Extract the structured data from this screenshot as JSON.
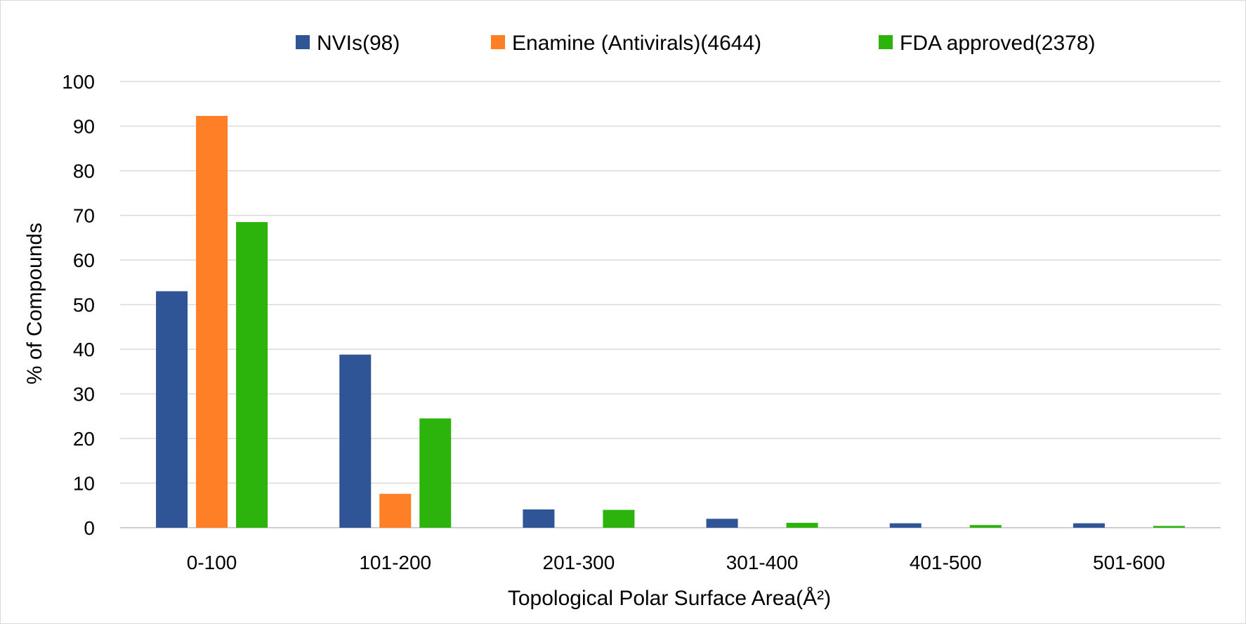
{
  "chart_data": {
    "type": "bar",
    "title": "",
    "xlabel": "Topological Polar Surface Area(Å²)",
    "ylabel": "% of Compounds",
    "ylim": [
      0,
      100
    ],
    "yticks": [
      "0",
      "10",
      "20",
      "30",
      "40",
      "50",
      "60",
      "70",
      "80",
      "90",
      "100"
    ],
    "grid": true,
    "legend_position": "top",
    "categories": [
      "0-100",
      "101-200",
      "201-300",
      "301-400",
      "401-500",
      "501-600"
    ],
    "series": [
      {
        "name": "NVIs(98)",
        "color": "#2f5597",
        "values": [
          53,
          38.8,
          4.1,
          2.0,
          1.0,
          1.0
        ]
      },
      {
        "name": "Enamine (Antivirals)(4644)",
        "color": "#ff7f27",
        "values": [
          92.3,
          7.6,
          0,
          0,
          0,
          0
        ]
      },
      {
        "name": "FDA approved(2378)",
        "color": "#2db40c",
        "values": [
          68.5,
          24.5,
          4.0,
          1.1,
          0.6,
          0.4
        ]
      }
    ]
  }
}
